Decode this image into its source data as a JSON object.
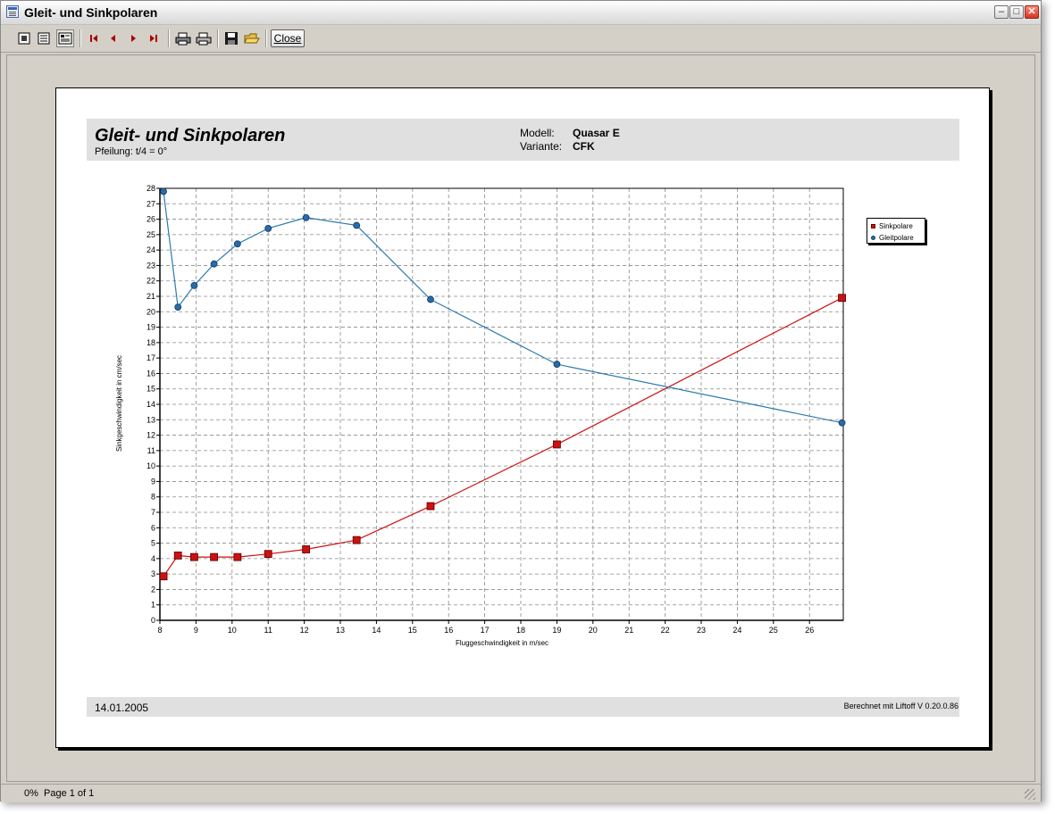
{
  "window": {
    "title": "Gleit- und Sinkpolaren",
    "controls": {
      "minimize": "–",
      "maximize": "□",
      "close": "✕"
    }
  },
  "toolbar": {
    "buttons": [
      "page-view-icon",
      "list-view-icon",
      "whole-page-icon",
      "first-page-icon",
      "prev-page-icon",
      "next-page-icon",
      "last-page-icon",
      "print-setup-icon",
      "print-icon",
      "save-icon",
      "open-icon"
    ],
    "close_label": "Close"
  },
  "report": {
    "title": "Gleit- und Sinkpolaren",
    "subtitle": "Pfeilung: t/4 = 0°",
    "model_label": "Modell:",
    "model_value": "Quasar E",
    "variant_label": "Variante:",
    "variant_value": "CFK",
    "date": "14.01.2005",
    "credit": "Berechnet mit Liftoff V 0.20.0.86"
  },
  "chart_data": {
    "type": "line",
    "title": "",
    "xlabel": "Fluggeschwindigkeit in m/sec",
    "ylabel": "Sinkgeschwindigkeit in cm/sec",
    "xlim": [
      8,
      27
    ],
    "ylim": [
      0,
      28
    ],
    "x_ticks": [
      8,
      9,
      10,
      11,
      12,
      13,
      14,
      15,
      16,
      17,
      18,
      19,
      20,
      21,
      22,
      23,
      24,
      25,
      26
    ],
    "y_ticks": [
      0,
      1,
      2,
      3,
      4,
      5,
      6,
      7,
      8,
      9,
      10,
      11,
      12,
      13,
      14,
      15,
      16,
      17,
      18,
      19,
      20,
      21,
      22,
      23,
      24,
      25,
      26,
      27,
      28
    ],
    "grid": true,
    "legend_position": "right",
    "series": [
      {
        "name": "Sinkpolare",
        "color": "#cc1111",
        "marker": "square",
        "x": [
          8.1,
          8.5,
          8.95,
          9.5,
          10.15,
          11.0,
          12.05,
          13.45,
          15.5,
          19.0,
          26.9
        ],
        "y": [
          2.85,
          4.2,
          4.1,
          4.1,
          4.1,
          4.3,
          4.6,
          5.2,
          7.4,
          11.4,
          20.9
        ]
      },
      {
        "name": "Gleitpolare",
        "color": "#2a7ab0",
        "marker": "circle",
        "x": [
          8.1,
          8.5,
          8.95,
          9.5,
          10.15,
          11.0,
          12.05,
          13.45,
          15.5,
          19.0,
          26.9
        ],
        "y": [
          27.8,
          20.3,
          21.7,
          23.1,
          24.4,
          25.4,
          26.1,
          25.6,
          20.8,
          16.6,
          12.8
        ]
      }
    ]
  },
  "status": {
    "zoom": "0%",
    "page": "Page 1 of 1"
  }
}
